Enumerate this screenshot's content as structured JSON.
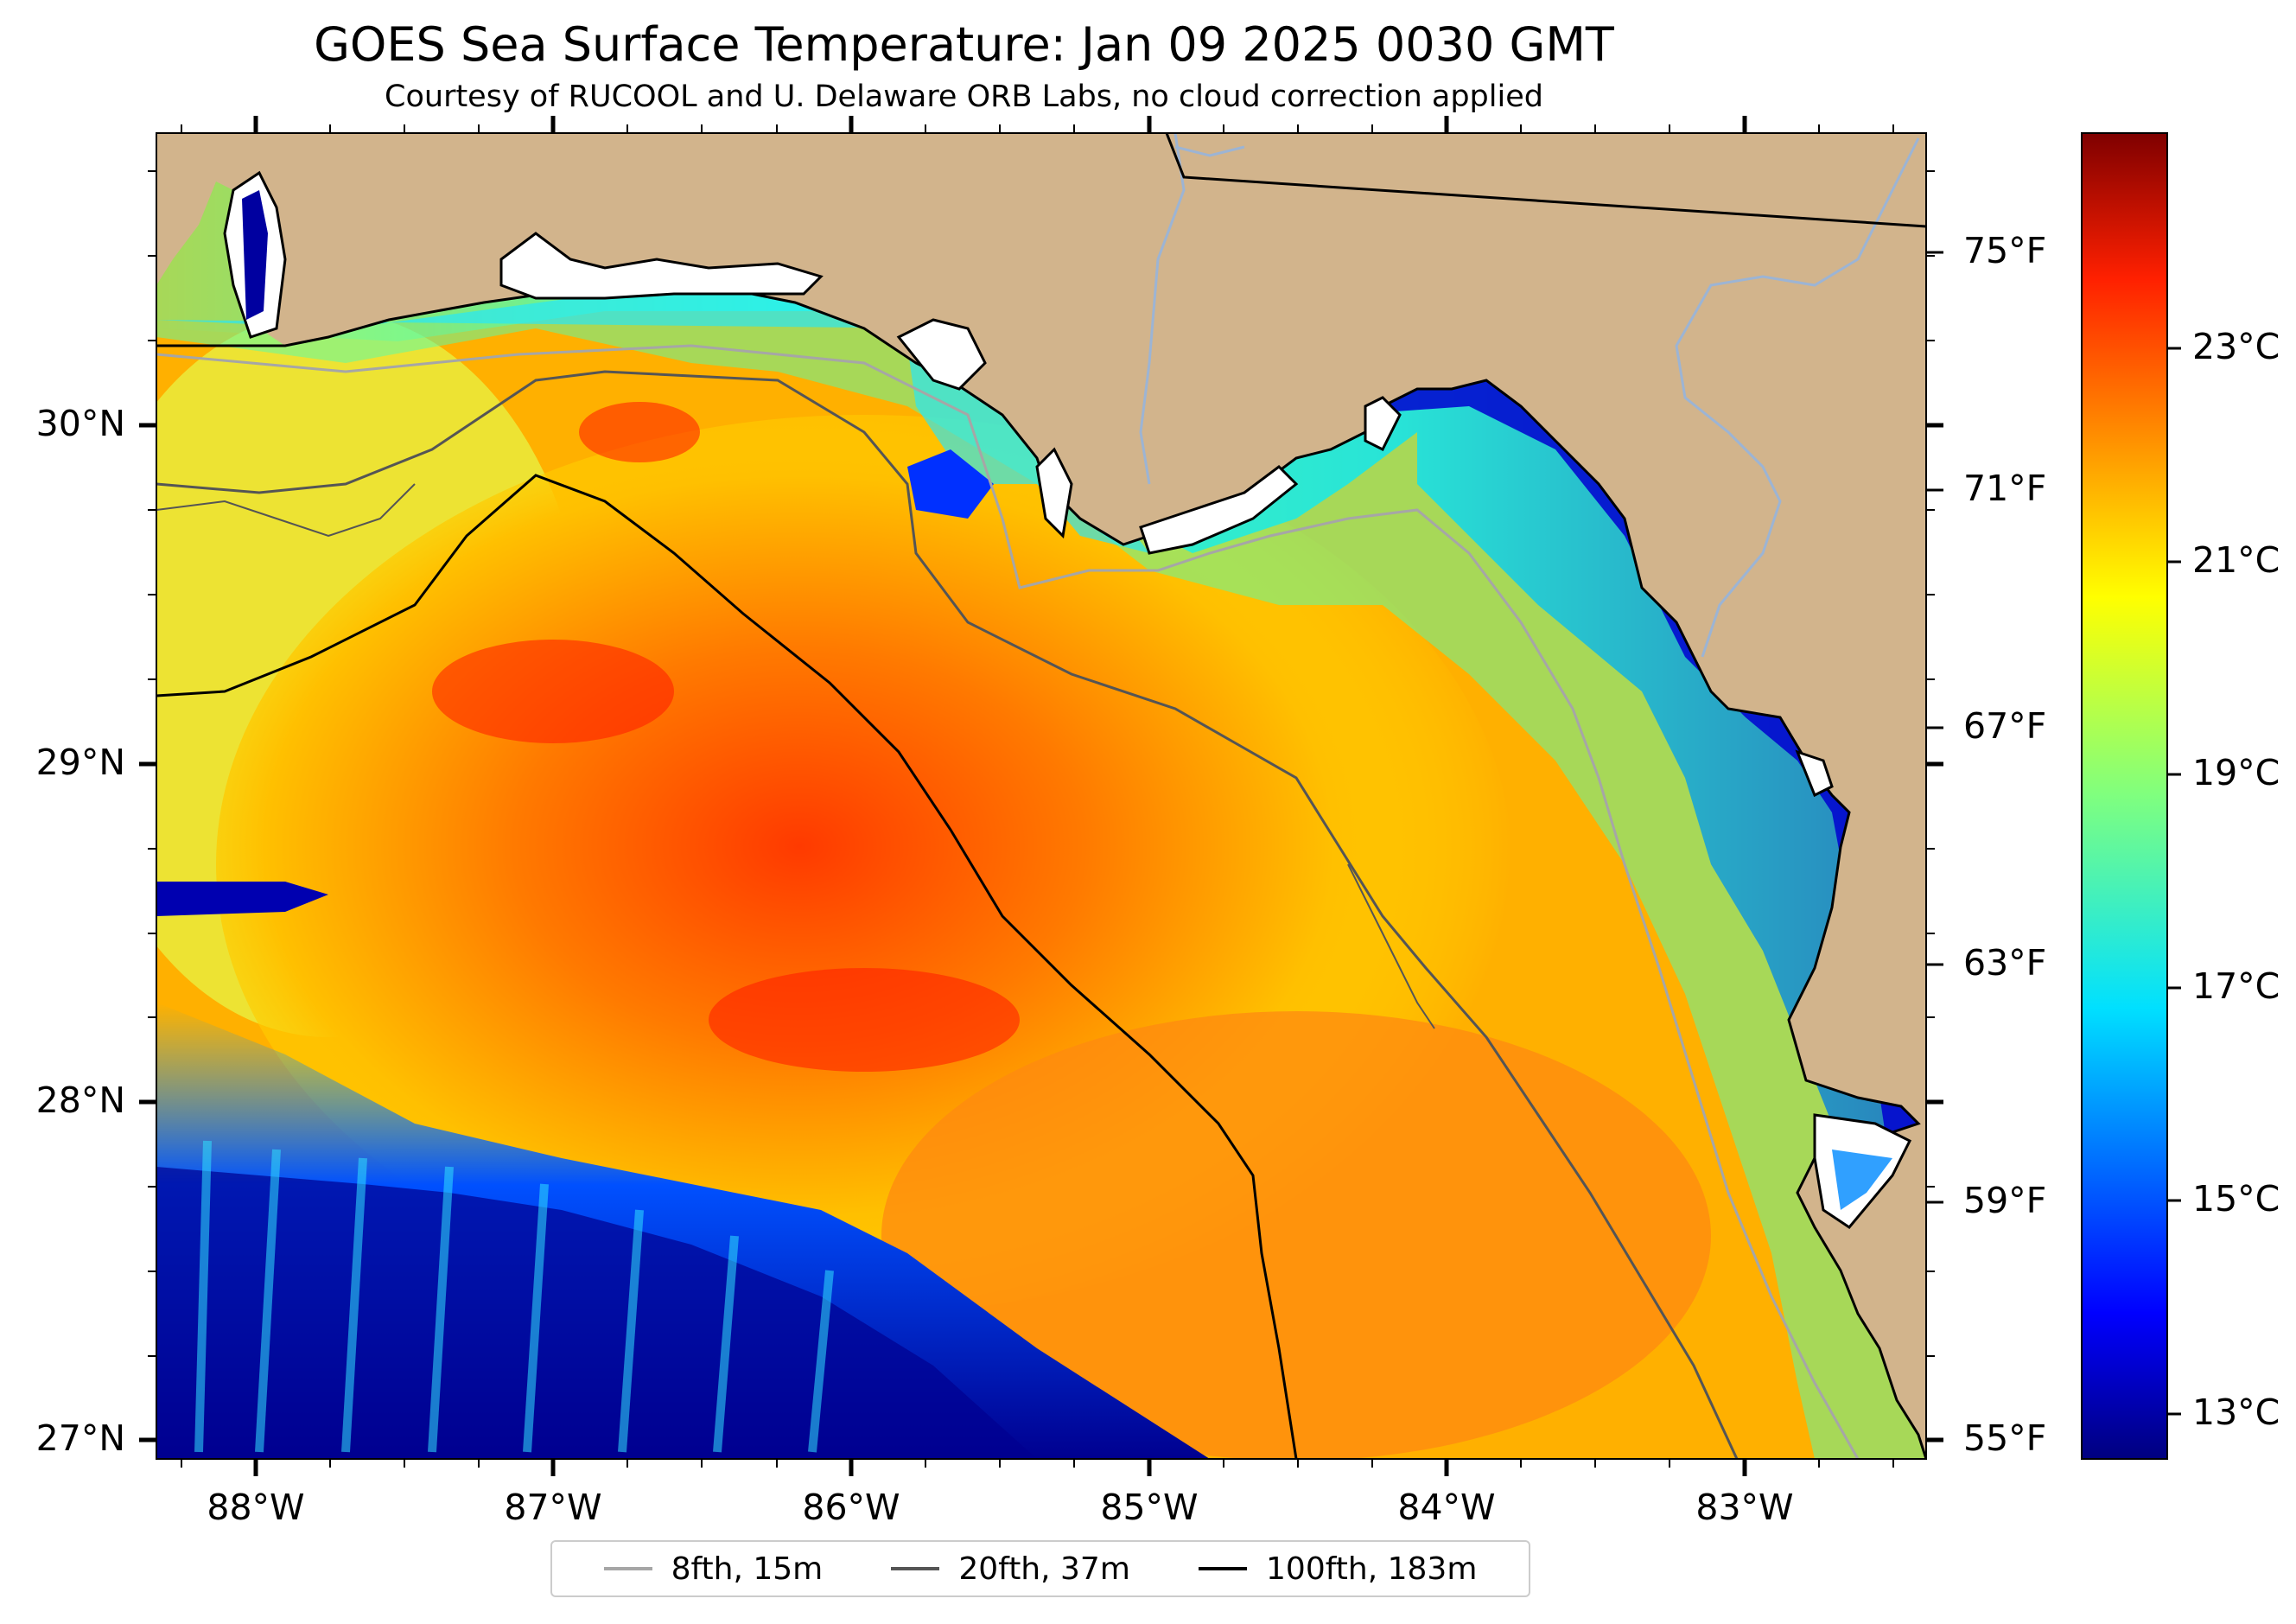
{
  "title": "GOES Sea Surface Temperature: Jan 09 2025 0030 GMT",
  "subtitle": "Courtesy of RUCOOL and U. Delaware ORB Labs, no cloud correction applied",
  "axes": {
    "longitude_labels": [
      "88°W",
      "87°W",
      "86°W",
      "85°W",
      "84°W",
      "83°W"
    ],
    "latitude_labels": [
      "30°N",
      "29°N",
      "28°N",
      "27°N"
    ],
    "fahrenheit_labels": [
      "75°F",
      "71°F",
      "67°F",
      "63°F",
      "59°F",
      "55°F"
    ],
    "celsius_labels": [
      "23°C",
      "21°C",
      "19°C",
      "17°C",
      "15°C",
      "13°C"
    ]
  },
  "colorbar": {
    "scale": "jet",
    "celsius_ticks": [
      23,
      21,
      19,
      17,
      15,
      13
    ],
    "fahrenheit_ticks": [
      75,
      71,
      67,
      63,
      59,
      55
    ]
  },
  "legend": [
    {
      "label": "8fth, 15m",
      "color": "#a6a6a6"
    },
    {
      "label": "20fth, 37m",
      "color": "#555555"
    },
    {
      "label": "100fth, 183m",
      "color": "#000000"
    }
  ],
  "colors": {
    "land": "#d2b48c",
    "coast": "#000000",
    "river": "#9cb4d4",
    "border": "#000000"
  }
}
